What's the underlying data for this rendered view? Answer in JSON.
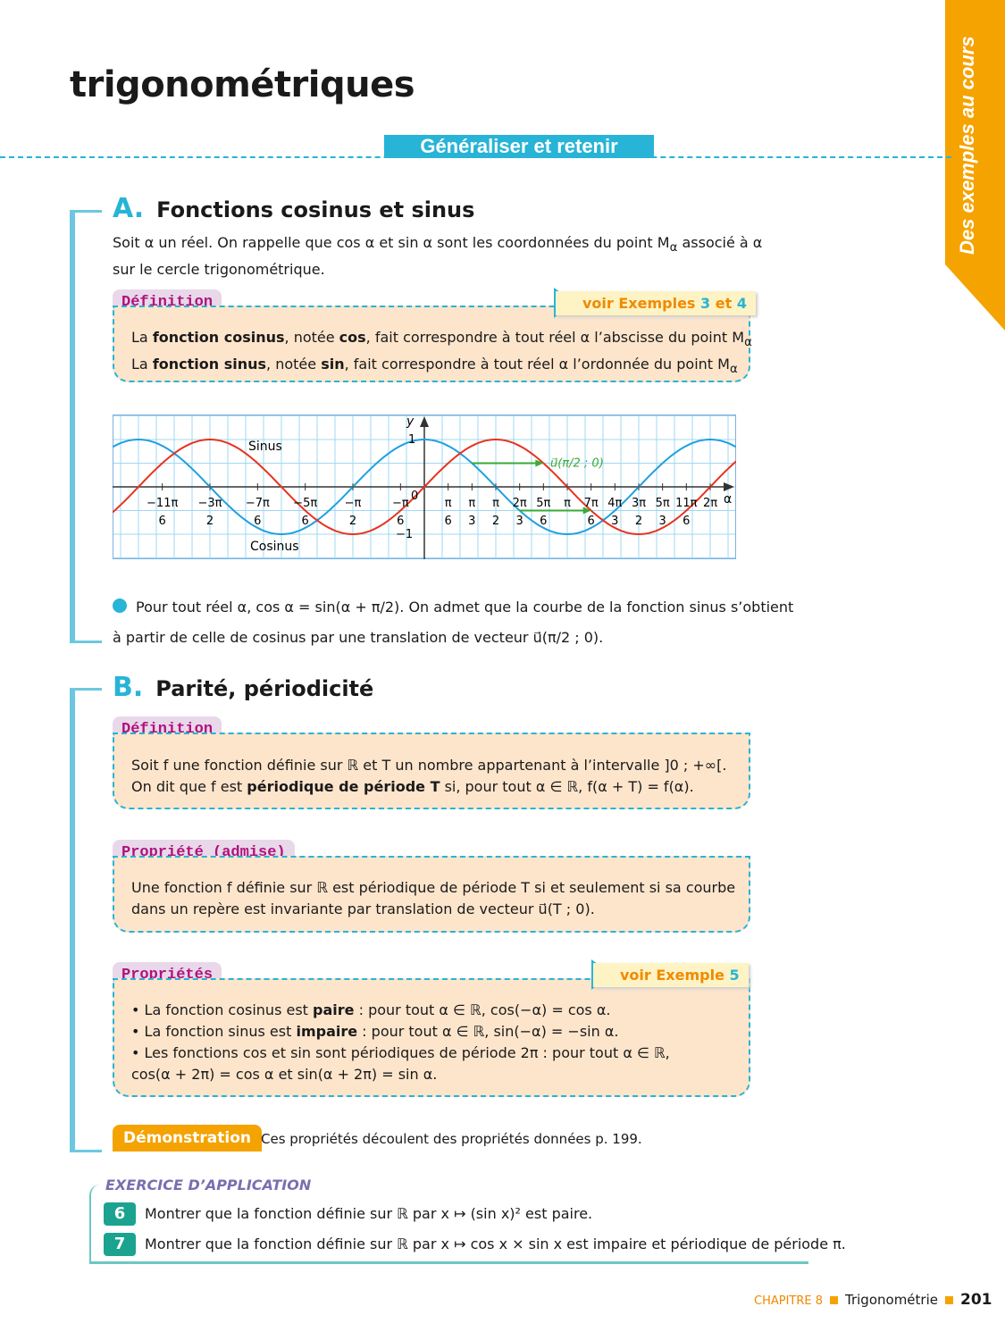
{
  "page": {
    "title": "trigonométriques",
    "banner": "Généraliser et retenir",
    "side_tab": "Des exemples au cours"
  },
  "section_a": {
    "letter": "A.",
    "title": "Fonctions cosinus et sinus",
    "intro_1": "Soit α un réel. On rappelle que cos α et sin α sont les coordonnées du point M",
    "intro_sub": "α",
    "intro_2": " associé à α",
    "intro_3": "sur le cercle trigonométrique.",
    "definition": {
      "label": "Définition",
      "voir": "voir Exemples ",
      "voir_n1": "3",
      "voir_et": " et ",
      "voir_n2": "4",
      "l1a": "La ",
      "l1b": "fonction cosinus",
      "l1c": ", notée ",
      "l1d": "cos",
      "l1e": ", fait correspondre à tout réel α l’abscisse du point M",
      "l1s": "α",
      "l2a": "La ",
      "l2b": "fonction sinus",
      "l2c": ", notée ",
      "l2d": "sin",
      "l2e": ", fait correspondre à tout réel α l’ordonnée du point M",
      "l2s": "α"
    },
    "graph": {
      "y_label": "y",
      "x_label": "α",
      "y_one": "1",
      "y_minus_one": "−1",
      "origin": "0",
      "sinus_label": "Sinus",
      "cosinus_label": "Cosinus",
      "vector_label": "u⃗(π/2 ; 0)",
      "neg_ticks": [
        {
          "num": "11π",
          "den": "6",
          "v": -1.8333
        },
        {
          "num": "3π",
          "den": "2",
          "v": -1.5
        },
        {
          "num": "7π",
          "den": "6",
          "v": -1.1667
        },
        {
          "num": "5π",
          "den": "6",
          "v": -0.8333
        },
        {
          "num": "π",
          "den": "2",
          "v": -0.5
        },
        {
          "num": "π",
          "den": "6",
          "v": -0.1667
        }
      ],
      "pos_ticks": [
        {
          "num": "π",
          "den": "6",
          "v": 0.1667
        },
        {
          "num": "π",
          "den": "3",
          "v": 0.3333
        },
        {
          "num": "π",
          "den": "2",
          "v": 0.5
        },
        {
          "num": "2π",
          "den": "3",
          "v": 0.6667
        },
        {
          "num": "5π",
          "den": "6",
          "v": 0.8333
        },
        {
          "num": "π",
          "den": "",
          "v": 1
        },
        {
          "num": "7π",
          "den": "6",
          "v": 1.1667
        },
        {
          "num": "4π",
          "den": "3",
          "v": 1.3333
        },
        {
          "num": "3π",
          "den": "2",
          "v": 1.5
        },
        {
          "num": "5π",
          "den": "3",
          "v": 1.6667
        },
        {
          "num": "11π",
          "den": "6",
          "v": 1.8333
        },
        {
          "num": "2π",
          "den": "",
          "v": 2
        }
      ],
      "colors": {
        "sinus": "#e8321e",
        "cosinus": "#1ea0e0",
        "vector": "#3aaa35",
        "grid": "#9fd8f0"
      }
    },
    "property_1": "Pour tout réel α, cos α = sin(α + π/2). On admet que la courbe de la fonction sinus s’obtient",
    "property_2": "à partir de celle de cosinus par une translation de vecteur u⃗(π/2 ; 0)."
  },
  "section_b": {
    "letter": "B.",
    "title": "Parité, périodicité",
    "definition": {
      "label": "Définition",
      "l1": "Soit f une fonction définie sur ℝ et T un nombre appartenant à l’intervalle ]0 ; +∞[.",
      "l2a": "On dit que f est ",
      "l2b": "périodique de période T",
      "l2c": " si, pour tout α ∈ ℝ, f(α + T) = f(α)."
    },
    "propriete_admise": {
      "label": "Propriété (admise)",
      "l1": "Une fonction f définie sur ℝ est périodique de période T si et seulement si sa courbe",
      "l2": "dans un repère est invariante par translation de vecteur u⃗(T ; 0)."
    },
    "proprietes": {
      "label": "Propriétés",
      "voir": "voir Exemple ",
      "voir_n": "5",
      "l1a": "• La fonction cosinus est ",
      "l1b": "paire",
      "l1c": " : pour tout α ∈ ℝ, cos(−α) = cos α.",
      "l2a": "• La fonction sinus est ",
      "l2b": "impaire",
      "l2c": " : pour tout α ∈ ℝ, sin(−α) = −sin α.",
      "l3": "• Les fonctions cos et sin sont périodiques de période 2π : pour tout α ∈ ℝ,",
      "l4": "cos(α + 2π) = cos α et sin(α + 2π) = sin α."
    },
    "demonstration": {
      "label": "Démonstration",
      "text": "Ces propriétés découlent des propriétés données p. 199."
    }
  },
  "exercices": {
    "label": "EXERCICE D’APPLICATION",
    "items": [
      {
        "num": "6",
        "text": "Montrer que la fonction définie sur ℝ par x ↦ (sin x)² est paire."
      },
      {
        "num": "7",
        "text": "Montrer que la fonction définie sur ℝ par x ↦ cos x × sin x est impaire et périodique de période π."
      }
    ]
  },
  "footer": {
    "chapter": "CHAPITRE 8",
    "subject": "Trigonométrie",
    "page": "201"
  }
}
